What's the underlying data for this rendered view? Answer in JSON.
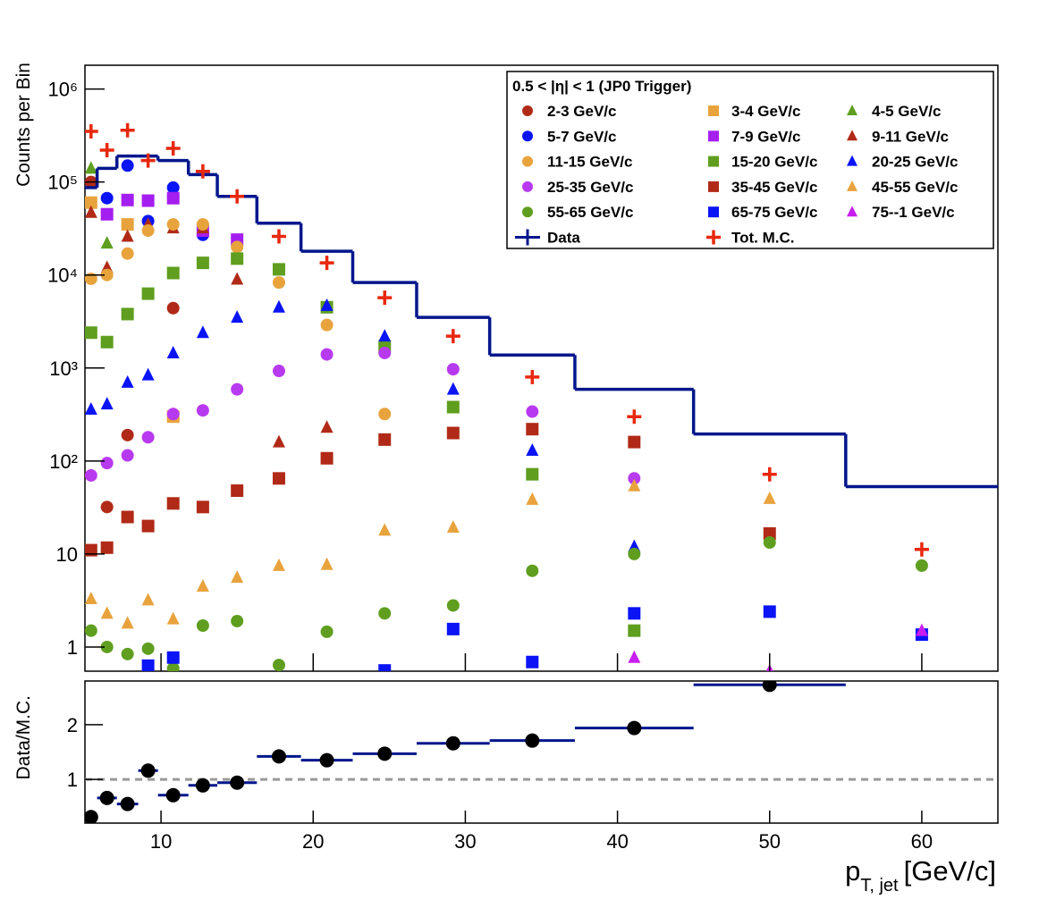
{
  "chart_data": [
    {
      "type": "scatter",
      "y_label": "Counts per Bin",
      "legend_title": "0.5 < |η| < 1 (JP0 Trigger)",
      "log_y": true,
      "xlim": [
        5,
        65
      ],
      "xticks": [
        10,
        20,
        30,
        40,
        50,
        60
      ],
      "ylim": [
        0.55,
        1800000
      ],
      "yticks": [
        1,
        10,
        {
          "value": 100,
          "label": "10²"
        },
        {
          "value": 1000,
          "label": "10³"
        },
        {
          "value": 10000,
          "label": "10⁴"
        },
        {
          "value": 100000,
          "label": "10⁵"
        },
        {
          "value": 1000000,
          "label": "10⁶"
        }
      ],
      "bins": [
        5,
        5.8,
        7.1,
        8.5,
        9.8,
        11.8,
        13.7,
        16.3,
        19.2,
        22.6,
        26.8,
        31.6,
        37.2,
        45,
        55,
        65
      ],
      "x": [
        5.4,
        6.45,
        7.8,
        9.15,
        10.8,
        12.75,
        15.0,
        17.75,
        20.9,
        24.7,
        29.2,
        34.4,
        41.1,
        50,
        60
      ],
      "series": [
        {
          "name": "2-3 GeV/c",
          "color": "#b02a17",
          "marker": "circle",
          "values": [
            100000,
            32,
            190,
            null,
            4400,
            null,
            null,
            null,
            null,
            null,
            null,
            null,
            null,
            null,
            null
          ]
        },
        {
          "name": "3-4 GeV/c",
          "color": "#e8a33d",
          "marker": "square",
          "values": [
            60000,
            null,
            35000,
            null,
            300,
            null,
            null,
            null,
            null,
            null,
            null,
            null,
            null,
            null,
            null
          ]
        },
        {
          "name": "4-5 GeV/c",
          "color": "#5f9e1f",
          "marker": "triangle",
          "values": [
            140000,
            22000,
            null,
            null,
            null,
            null,
            null,
            null,
            null,
            null,
            null,
            null,
            null,
            null,
            null
          ]
        },
        {
          "name": "5-7 GeV/c",
          "color": "#0a14f5",
          "marker": "circle",
          "values": [
            null,
            67000,
            150000,
            38000,
            87000,
            27000,
            null,
            null,
            null,
            null,
            null,
            null,
            null,
            null,
            null
          ]
        },
        {
          "name": "7-9 GeV/c",
          "color": "#a51ef0",
          "marker": "square",
          "values": [
            null,
            45000,
            64000,
            63000,
            67000,
            30000,
            24000,
            null,
            null,
            null,
            null,
            null,
            null,
            null,
            null
          ]
        },
        {
          "name": "9-11 GeV/c",
          "color": "#b02a17",
          "marker": "triangle",
          "values": [
            47000,
            12000,
            26000,
            35000,
            32000,
            32000,
            9000,
            160,
            230,
            null,
            null,
            null,
            null,
            null,
            null
          ]
        },
        {
          "name": "11-15 GeV/c",
          "color": "#e8a33d",
          "marker": "circle",
          "values": [
            9100,
            10000,
            17000,
            30000,
            35000,
            35000,
            20000,
            8300,
            2900,
            320,
            null,
            null,
            null,
            null,
            null
          ]
        },
        {
          "name": "15-20 GeV/c",
          "color": "#5f9e1f",
          "marker": "square",
          "values": [
            2400,
            1900,
            3800,
            6300,
            10500,
            13500,
            15000,
            11500,
            4500,
            1700,
            380,
            72,
            1.5,
            null,
            null
          ]
        },
        {
          "name": "20-25 GeV/c",
          "color": "#0a14f5",
          "marker": "triangle",
          "values": [
            360,
            410,
            700,
            840,
            1450,
            2400,
            3500,
            4500,
            4700,
            2200,
            590,
            130,
            12,
            null,
            null
          ]
        },
        {
          "name": "25-35 GeV/c",
          "color": "#b83af0",
          "marker": "circle",
          "values": [
            70,
            95,
            115,
            180,
            320,
            350,
            590,
            930,
            1400,
            1450,
            970,
            340,
            65,
            null,
            null
          ]
        },
        {
          "name": "35-45 GeV/c",
          "color": "#b02a17",
          "marker": "square",
          "values": [
            11,
            11.7,
            25,
            20,
            35,
            32,
            48,
            65,
            107,
            170,
            200,
            220,
            160,
            16.6,
            null
          ]
        },
        {
          "name": "45-55 GeV/c",
          "color": "#e8a33d",
          "marker": "triangle",
          "values": [
            3.3,
            2.3,
            1.8,
            3.2,
            2,
            4.5,
            5.6,
            7.5,
            7.7,
            18,
            19.4,
            38.6,
            54,
            39.5,
            null
          ]
        },
        {
          "name": "55-65 GeV/c",
          "color": "#5f9e1f",
          "marker": "circle",
          "values": [
            1.5,
            1,
            0.84,
            0.96,
            0.59,
            1.7,
            1.9,
            0.64,
            1.46,
            2.3,
            2.8,
            6.6,
            10,
            13.3,
            7.5
          ]
        },
        {
          "name": "65-75 GeV/c",
          "color": "#0a14f5",
          "marker": "square",
          "values": [
            null,
            null,
            null,
            0.63,
            0.77,
            null,
            null,
            null,
            null,
            0.56,
            1.56,
            0.69,
            2.3,
            2.4,
            1.36
          ]
        },
        {
          "name": "75--1 GeV/c",
          "color": "#c81ef0",
          "marker": "triangle",
          "values": [
            null,
            null,
            null,
            null,
            null,
            null,
            null,
            null,
            null,
            null,
            null,
            null,
            0.77,
            0.55,
            1.5
          ]
        },
        {
          "name": "Data",
          "color": "#00168c",
          "marker": "step",
          "values": [
            87000,
            140000,
            190000,
            190000,
            170000,
            120000,
            70000,
            36000,
            18000,
            8300,
            3500,
            1380,
            590,
            195,
            53
          ]
        },
        {
          "name": "Tot. M.C.",
          "color": "#e8280e",
          "marker": "cross",
          "values": [
            350000,
            220000,
            360000,
            170000,
            230000,
            130000,
            70000,
            26000,
            13500,
            5700,
            2200,
            800,
            300,
            72,
            11.2
          ]
        }
      ]
    },
    {
      "type": "scatter",
      "y_label": "Data/M.C.",
      "x_label": {
        "main": "p",
        "sub": "T, jet",
        "unit": "[GeV/c]"
      },
      "xlim": [
        5,
        65
      ],
      "xticks": [
        10,
        20,
        30,
        40,
        50,
        60
      ],
      "ylim": [
        0.2,
        2.8
      ],
      "yticks": [
        1,
        2
      ],
      "reference_line": 1,
      "bins": [
        5,
        5.8,
        7.1,
        8.5,
        9.8,
        11.8,
        13.7,
        16.3,
        19.2,
        22.6,
        26.8,
        31.6,
        37.2,
        45,
        55,
        65
      ],
      "x": [
        5.4,
        6.45,
        7.8,
        9.15,
        10.8,
        12.75,
        15.0,
        17.75,
        20.9,
        24.7,
        29.2,
        34.4,
        41.1,
        50,
        60
      ],
      "color": "#000000",
      "bar_color": "#00168c",
      "values": [
        0.31,
        0.66,
        0.55,
        1.16,
        0.71,
        0.89,
        0.94,
        1.42,
        1.35,
        1.47,
        1.66,
        1.71,
        1.94,
        2.73,
        null
      ]
    }
  ]
}
